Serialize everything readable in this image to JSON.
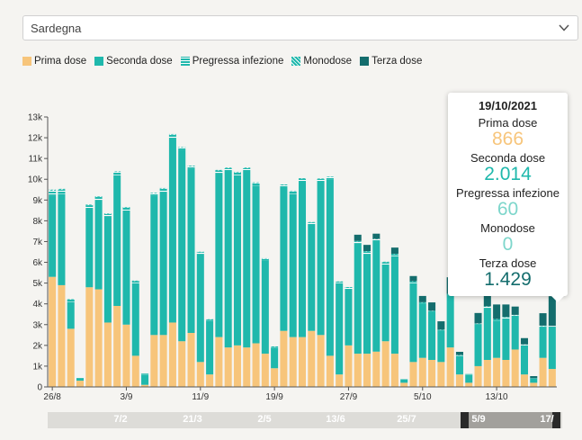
{
  "selector": {
    "value": "Sardegna",
    "icon": "chevron-down-icon"
  },
  "legend": [
    {
      "label": "Prima dose",
      "color": "#f7c57b",
      "pattern": "solid"
    },
    {
      "label": "Seconda dose",
      "color": "#1fb8ac",
      "pattern": "solid"
    },
    {
      "label": "Pregressa infezione",
      "color": "#7dd6cb",
      "pattern": "horizontal-stripes"
    },
    {
      "label": "Monodose",
      "color": "#7dd6cb",
      "pattern": "diagonal-stripes"
    },
    {
      "label": "Terza dose",
      "color": "#146d6d",
      "pattern": "solid"
    }
  ],
  "chart_data": {
    "type": "bar",
    "stacked": true,
    "ylim": [
      0,
      13000
    ],
    "yticks": [
      "0",
      "1k",
      "2k",
      "3k",
      "4k",
      "5k",
      "6k",
      "7k",
      "8k",
      "9k",
      "10k",
      "11k",
      "12k",
      "13k"
    ],
    "xticks": [
      {
        "label": "26/8",
        "index": 0
      },
      {
        "label": "3/9",
        "index": 8
      },
      {
        "label": "11/9",
        "index": 16
      },
      {
        "label": "19/9",
        "index": 24
      },
      {
        "label": "27/9",
        "index": 32
      },
      {
        "label": "5/10",
        "index": 40
      },
      {
        "label": "13/10",
        "index": 48
      }
    ],
    "categories": [
      "26/8",
      "27/8",
      "28/8",
      "29/8",
      "30/8",
      "31/8",
      "1/9",
      "2/9",
      "3/9",
      "4/9",
      "5/9",
      "6/9",
      "7/9",
      "8/9",
      "9/9",
      "10/9",
      "11/9",
      "12/9",
      "13/9",
      "14/9",
      "15/9",
      "16/9",
      "17/9",
      "18/9",
      "19/9",
      "20/9",
      "21/9",
      "22/9",
      "23/9",
      "24/9",
      "25/9",
      "26/9",
      "27/9",
      "28/9",
      "29/9",
      "30/9",
      "1/10",
      "2/10",
      "3/10",
      "4/10",
      "5/10",
      "6/10",
      "7/10",
      "8/10",
      "9/10",
      "10/10",
      "11/10",
      "12/10",
      "13/10",
      "14/10",
      "15/10",
      "16/10",
      "17/10",
      "18/10",
      "19/10"
    ],
    "series": [
      {
        "name": "Prima dose",
        "color": "#f7c57b",
        "values": [
          5300,
          4900,
          2800,
          300,
          4800,
          4700,
          3100,
          3900,
          3000,
          1500,
          100,
          2500,
          2500,
          3100,
          2200,
          2600,
          1200,
          600,
          2400,
          1900,
          2000,
          1900,
          2100,
          1600,
          900,
          2700,
          2400,
          2400,
          2700,
          2500,
          1500,
          600,
          2000,
          1600,
          1600,
          1700,
          2200,
          1600,
          200,
          1200,
          1400,
          1300,
          1200,
          1900,
          600,
          200,
          1000,
          1300,
          1400,
          1300,
          1800,
          600,
          200,
          1400,
          866
        ]
      },
      {
        "name": "Seconda dose",
        "color": "#1fb8ac",
        "values": [
          3900,
          4400,
          1300,
          100,
          3800,
          4300,
          5100,
          6300,
          5500,
          3500,
          500,
          6700,
          6900,
          8900,
          9200,
          7900,
          5200,
          2600,
          7900,
          8500,
          8200,
          8500,
          7600,
          4500,
          1000,
          6900,
          6900,
          7500,
          5100,
          7400,
          8500,
          4400,
          2700,
          5300,
          4800,
          5300,
          3700,
          4700,
          150,
          3800,
          2600,
          2300,
          1500,
          2500,
          900,
          400,
          2000,
          2500,
          1800,
          2000,
          1600,
          1400,
          200,
          1500,
          2014
        ]
      },
      {
        "name": "Pregressa infezione",
        "color": "#7dd6cb",
        "values": [
          250,
          200,
          120,
          40,
          150,
          150,
          120,
          150,
          130,
          100,
          40,
          120,
          150,
          150,
          120,
          130,
          90,
          50,
          120,
          130,
          130,
          130,
          120,
          80,
          40,
          130,
          130,
          130,
          120,
          120,
          110,
          70,
          90,
          110,
          120,
          110,
          110,
          90,
          20,
          80,
          70,
          60,
          50,
          70,
          30,
          20,
          50,
          70,
          60,
          60,
          60,
          40,
          20,
          40,
          60
        ]
      },
      {
        "name": "Monodose",
        "color": "#7dd6cb",
        "values": [
          50,
          40,
          20,
          0,
          30,
          30,
          30,
          30,
          30,
          20,
          0,
          30,
          30,
          30,
          30,
          30,
          20,
          10,
          30,
          30,
          30,
          30,
          30,
          20,
          10,
          20,
          20,
          20,
          20,
          20,
          20,
          10,
          20,
          20,
          20,
          20,
          20,
          20,
          0,
          10,
          10,
          10,
          10,
          10,
          10,
          0,
          10,
          10,
          10,
          10,
          10,
          10,
          0,
          10,
          0
        ]
      },
      {
        "name": "Terza dose",
        "color": "#146d6d",
        "values": [
          0,
          0,
          0,
          0,
          0,
          0,
          0,
          0,
          0,
          0,
          0,
          0,
          0,
          0,
          0,
          0,
          0,
          0,
          0,
          0,
          0,
          0,
          0,
          0,
          0,
          0,
          0,
          0,
          0,
          0,
          0,
          0,
          0,
          300,
          300,
          250,
          0,
          300,
          0,
          250,
          300,
          400,
          400,
          800,
          150,
          0,
          500,
          600,
          700,
          600,
          400,
          300,
          100,
          600,
          1429
        ]
      }
    ]
  },
  "tooltip": {
    "date": "19/10/2021",
    "rows": [
      {
        "label": "Prima dose",
        "value": "866",
        "color": "#f7c57b"
      },
      {
        "label": "Seconda dose",
        "value": "2.014",
        "color": "#1fb8ac"
      },
      {
        "label": "Pregressa infezione",
        "value": "60",
        "color": "#7dd6cb"
      },
      {
        "label": "Monodose",
        "value": "0",
        "color": "#7dd6cb"
      },
      {
        "label": "Terza dose",
        "value": "1.429",
        "color": "#146d6d"
      }
    ]
  },
  "timeline": {
    "ticks": [
      "7/2",
      "21/3",
      "2/5",
      "13/6",
      "25/7",
      "5/9",
      "17/"
    ]
  }
}
